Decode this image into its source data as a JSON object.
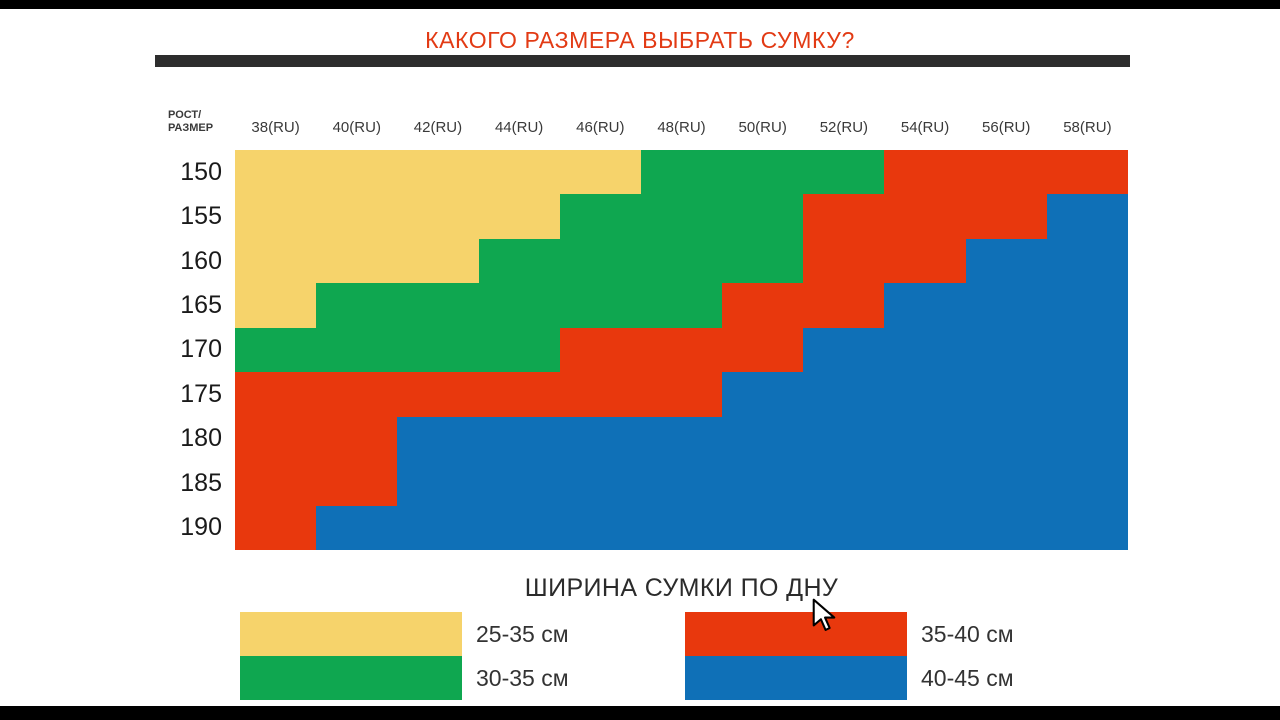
{
  "title": "КАКОГО РАЗМЕРА ВЫБРАТЬ СУМКУ?",
  "title_color": "#e23a14",
  "divider_color": "#2d2d2d",
  "chart_data": {
    "type": "heatmap",
    "title": "КАКОГО РАЗМЕРА ВЫБРАТЬ СУМКУ?",
    "corner_label": "РОСТ/РАЗМЕР",
    "corner_lines": [
      "РОСТ/",
      "РАЗМЕР"
    ],
    "xlabel": "Размер (RU)",
    "ylabel": "Рост",
    "x_categories": [
      "38(RU)",
      "40(RU)",
      "42(RU)",
      "44(RU)",
      "46(RU)",
      "48(RU)",
      "50(RU)",
      "52(RU)",
      "54(RU)",
      "56(RU)",
      "58(RU)"
    ],
    "y_categories": [
      "150",
      "155",
      "160",
      "165",
      "170",
      "175",
      "180",
      "185",
      "190"
    ],
    "cells": [
      "YYYYYGGGRRR",
      "YYYYGGGRRRB",
      "YYYGGGGRRBB",
      "YGGGGGRRBBB",
      "GGGGRRRBBBB",
      "RRRRRRBBBBB",
      "RRBBBBBBBBB",
      "RRBBBBBBBBB",
      "RBBBBBBBBBB"
    ],
    "value_map": {
      "Y": "25-35 см",
      "G": "30-35 см",
      "R": "35-40 см",
      "B": "40-45 см"
    },
    "color_map": {
      "Y": "#f6d36b",
      "G": "#0fa750",
      "R": "#e8380d",
      "B": "#0f70b7"
    },
    "legend": {
      "title": "ШИРИНА СУМКИ ПО ДНУ",
      "position": "bottom",
      "columns": [
        {
          "items": [
            {
              "key": "Y",
              "label": "25-35 см"
            },
            {
              "key": "G",
              "label": "30-35 см"
            }
          ]
        },
        {
          "items": [
            {
              "key": "R",
              "label": "35-40 см"
            },
            {
              "key": "B",
              "label": "40-45 см"
            }
          ]
        }
      ]
    }
  }
}
